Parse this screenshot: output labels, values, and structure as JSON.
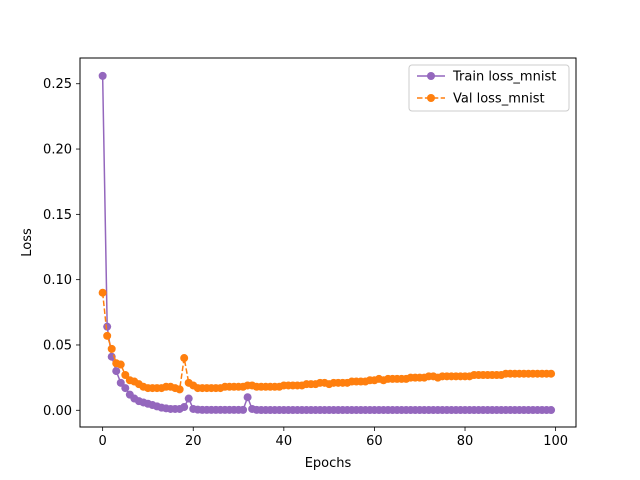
{
  "chart_data": {
    "type": "line",
    "title": "",
    "xlabel": "Epochs",
    "ylabel": "Loss",
    "xlim": [
      -5,
      104.5
    ],
    "ylim": [
      -0.0128,
      0.2697
    ],
    "xticks": [
      0,
      20,
      40,
      60,
      80,
      100
    ],
    "xtick_labels": [
      "0",
      "20",
      "40",
      "60",
      "80",
      "100"
    ],
    "yticks": [
      0.0,
      0.05,
      0.1,
      0.15,
      0.2,
      0.25
    ],
    "ytick_labels": [
      "0.00",
      "0.05",
      "0.10",
      "0.15",
      "0.20",
      "0.25"
    ],
    "grid": false,
    "legend_position": "upper right",
    "series": [
      {
        "name": "Train loss_mnist",
        "color": "#9467bd",
        "linestyle": "solid",
        "marker": "circle",
        "x": [
          0,
          1,
          2,
          3,
          4,
          5,
          6,
          7,
          8,
          9,
          10,
          11,
          12,
          13,
          14,
          15,
          16,
          17,
          18,
          19,
          20,
          21,
          22,
          23,
          24,
          25,
          26,
          27,
          28,
          29,
          30,
          31,
          32,
          33,
          34,
          35,
          36,
          37,
          38,
          39,
          40,
          41,
          42,
          43,
          44,
          45,
          46,
          47,
          48,
          49,
          50,
          51,
          52,
          53,
          54,
          55,
          56,
          57,
          58,
          59,
          60,
          61,
          62,
          63,
          64,
          65,
          66,
          67,
          68,
          69,
          70,
          71,
          72,
          73,
          74,
          75,
          76,
          77,
          78,
          79,
          80,
          81,
          82,
          83,
          84,
          85,
          86,
          87,
          88,
          89,
          90,
          91,
          92,
          93,
          94,
          95,
          96,
          97,
          98,
          99
        ],
        "values": [
          0.256,
          0.064,
          0.041,
          0.03,
          0.021,
          0.017,
          0.012,
          0.009,
          0.007,
          0.006,
          0.005,
          0.004,
          0.003,
          0.002,
          0.0015,
          0.001,
          0.001,
          0.001,
          0.0025,
          0.009,
          0.001,
          0.0005,
          0.0003,
          0.0003,
          0.0003,
          0.0003,
          0.0003,
          0.0003,
          0.0003,
          0.0003,
          0.0003,
          0.0003,
          0.01,
          0.001,
          0.0003,
          0.0002,
          0.0002,
          0.0002,
          0.0002,
          0.0002,
          0.0002,
          0.0002,
          0.0002,
          0.0002,
          0.0002,
          0.0002,
          0.0002,
          0.0002,
          0.0002,
          0.0002,
          0.0002,
          0.0002,
          0.0002,
          0.0002,
          0.0002,
          0.0002,
          0.0002,
          0.0002,
          0.0002,
          0.0002,
          0.0002,
          0.0002,
          0.0002,
          0.0002,
          0.0002,
          0.0002,
          0.0002,
          0.0002,
          0.0002,
          0.0002,
          0.0002,
          0.0002,
          0.0002,
          0.0002,
          0.0002,
          0.0002,
          0.0002,
          0.0002,
          0.0002,
          0.0002,
          0.0002,
          0.0002,
          0.0002,
          0.0002,
          0.0002,
          0.0002,
          0.0002,
          0.0002,
          0.0002,
          0.0002,
          0.0002,
          0.0002,
          0.0002,
          0.0002,
          0.0002,
          0.0002,
          0.0002,
          0.0002,
          0.0002,
          0.0002
        ]
      },
      {
        "name": "Val loss_mnist",
        "color": "#ff7f0e",
        "linestyle": "dashed",
        "marker": "circle",
        "x": [
          0,
          1,
          2,
          3,
          4,
          5,
          6,
          7,
          8,
          9,
          10,
          11,
          12,
          13,
          14,
          15,
          16,
          17,
          18,
          19,
          20,
          21,
          22,
          23,
          24,
          25,
          26,
          27,
          28,
          29,
          30,
          31,
          32,
          33,
          34,
          35,
          36,
          37,
          38,
          39,
          40,
          41,
          42,
          43,
          44,
          45,
          46,
          47,
          48,
          49,
          50,
          51,
          52,
          53,
          54,
          55,
          56,
          57,
          58,
          59,
          60,
          61,
          62,
          63,
          64,
          65,
          66,
          67,
          68,
          69,
          70,
          71,
          72,
          73,
          74,
          75,
          76,
          77,
          78,
          79,
          80,
          81,
          82,
          83,
          84,
          85,
          86,
          87,
          88,
          89,
          90,
          91,
          92,
          93,
          94,
          95,
          96,
          97,
          98,
          99
        ],
        "values": [
          0.09,
          0.057,
          0.047,
          0.036,
          0.035,
          0.027,
          0.023,
          0.022,
          0.02,
          0.018,
          0.017,
          0.017,
          0.017,
          0.017,
          0.018,
          0.018,
          0.017,
          0.016,
          0.04,
          0.021,
          0.019,
          0.017,
          0.017,
          0.017,
          0.017,
          0.017,
          0.017,
          0.018,
          0.018,
          0.018,
          0.018,
          0.018,
          0.019,
          0.019,
          0.018,
          0.018,
          0.018,
          0.018,
          0.018,
          0.018,
          0.019,
          0.019,
          0.019,
          0.019,
          0.019,
          0.02,
          0.02,
          0.02,
          0.021,
          0.021,
          0.02,
          0.021,
          0.021,
          0.021,
          0.021,
          0.022,
          0.022,
          0.022,
          0.022,
          0.023,
          0.023,
          0.024,
          0.023,
          0.024,
          0.024,
          0.024,
          0.024,
          0.024,
          0.025,
          0.025,
          0.025,
          0.025,
          0.026,
          0.026,
          0.025,
          0.026,
          0.026,
          0.026,
          0.026,
          0.026,
          0.026,
          0.026,
          0.027,
          0.027,
          0.027,
          0.027,
          0.027,
          0.027,
          0.027,
          0.028,
          0.028,
          0.028,
          0.028,
          0.028,
          0.028,
          0.028,
          0.028,
          0.028,
          0.028,
          0.028
        ]
      }
    ]
  }
}
